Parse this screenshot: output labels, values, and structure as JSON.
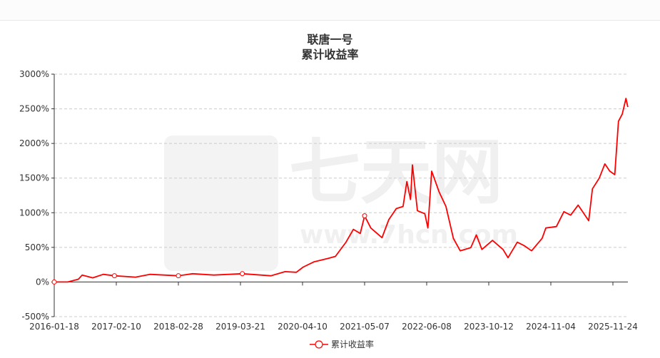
{
  "chart_data": {
    "type": "line",
    "title": "联唐一号",
    "subtitle": "累计收益率",
    "xlabel": "",
    "ylabel": "",
    "x_tick_labels": [
      "2016-01-18",
      "2017-02-10",
      "2018-02-28",
      "2019-03-21",
      "2020-04-10",
      "2021-05-07",
      "2022-06-08",
      "2023-10-12",
      "2024-11-04",
      "2025-11-24"
    ],
    "y_tick_labels": [
      "3000%",
      "2500%",
      "2000%",
      "1500%",
      "1000%",
      "500%",
      "0%",
      "-500%"
    ],
    "y_ticks": [
      3000,
      2500,
      2000,
      1500,
      1000,
      500,
      0,
      -500
    ],
    "ylim": [
      -500,
      3000
    ],
    "grid": true,
    "legend_position": "bottom-center",
    "x_note": "x given as fractional position along the category axis (0 = 2016-01-18, 9 = 2025-11-24)",
    "series": [
      {
        "name": "累计收益率",
        "color": "#ff0000",
        "points": [
          [
            0,
            0
          ],
          [
            0.22,
            0
          ],
          [
            0.39,
            40
          ],
          [
            0.45,
            100
          ],
          [
            0.62,
            60
          ],
          [
            0.79,
            110
          ],
          [
            0.97,
            90
          ],
          [
            1.31,
            70
          ],
          [
            1.54,
            110
          ],
          [
            2.0,
            90
          ],
          [
            2.23,
            120
          ],
          [
            2.57,
            100
          ],
          [
            3.03,
            120
          ],
          [
            3.49,
            90
          ],
          [
            3.72,
            150
          ],
          [
            3.9,
            140
          ],
          [
            4.01,
            215
          ],
          [
            4.18,
            290
          ],
          [
            4.41,
            340
          ],
          [
            4.53,
            370
          ],
          [
            4.7,
            575
          ],
          [
            4.82,
            760
          ],
          [
            4.93,
            700
          ],
          [
            5.0,
            955
          ],
          [
            5.1,
            780
          ],
          [
            5.28,
            640
          ],
          [
            5.39,
            900
          ],
          [
            5.51,
            1060
          ],
          [
            5.62,
            1090
          ],
          [
            5.68,
            1450
          ],
          [
            5.74,
            1190
          ],
          [
            5.77,
            1690
          ],
          [
            5.85,
            1030
          ],
          [
            5.97,
            985
          ],
          [
            6.02,
            780
          ],
          [
            6.08,
            1600
          ],
          [
            6.2,
            1300
          ],
          [
            6.31,
            1090
          ],
          [
            6.43,
            630
          ],
          [
            6.54,
            450
          ],
          [
            6.71,
            495
          ],
          [
            6.8,
            680
          ],
          [
            6.89,
            470
          ],
          [
            7.06,
            600
          ],
          [
            7.23,
            470
          ],
          [
            7.31,
            350
          ],
          [
            7.46,
            575
          ],
          [
            7.57,
            525
          ],
          [
            7.69,
            450
          ],
          [
            7.86,
            630
          ],
          [
            7.92,
            780
          ],
          [
            8.09,
            800
          ],
          [
            8.21,
            1015
          ],
          [
            8.32,
            965
          ],
          [
            8.44,
            1110
          ],
          [
            8.61,
            885
          ],
          [
            8.67,
            1345
          ],
          [
            8.78,
            1500
          ],
          [
            8.87,
            1705
          ],
          [
            8.95,
            1600
          ],
          [
            9.03,
            1550
          ],
          [
            9.09,
            2320
          ],
          [
            9.15,
            2425
          ],
          [
            9.21,
            2650
          ],
          [
            9.24,
            2525
          ]
        ],
        "markers_at": [
          0,
          1,
          2,
          3,
          5
        ]
      }
    ],
    "watermark": "七天网 www.7hcn.com"
  }
}
